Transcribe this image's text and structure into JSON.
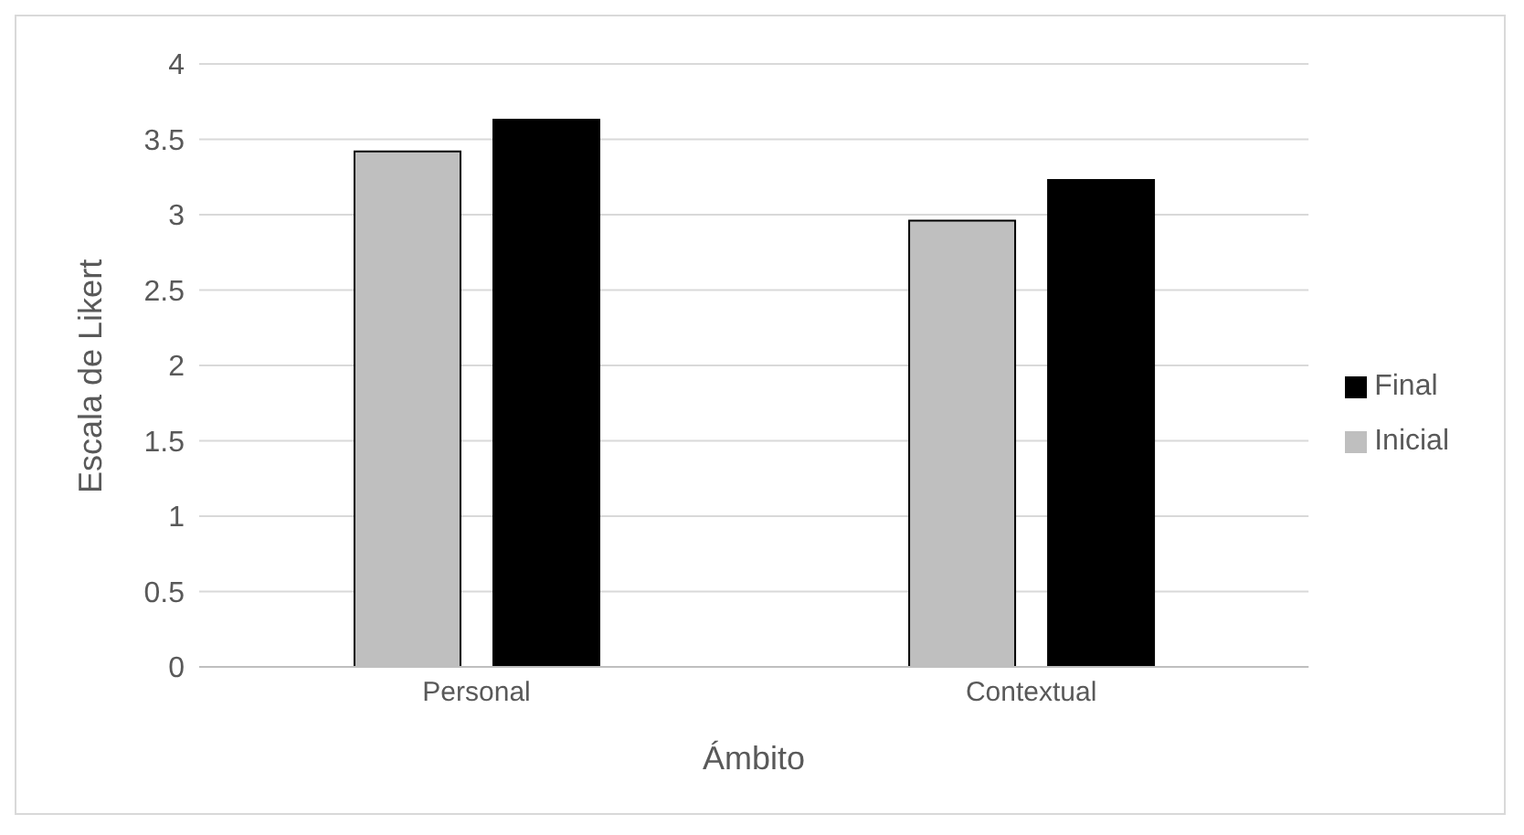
{
  "chart_data": {
    "type": "bar",
    "xlabel": "Ámbito",
    "ylabel": "Escala de Likert",
    "categories": [
      "Personal",
      "Contextual"
    ],
    "series": [
      {
        "name": "Inicial",
        "color": "#bfbfbf",
        "values": [
          3.42,
          2.96
        ]
      },
      {
        "name": "Final",
        "color": "#000000",
        "values": [
          3.63,
          3.23
        ]
      }
    ],
    "ylim": [
      0,
      4
    ],
    "yticks": [
      0,
      0.5,
      1,
      1.5,
      2,
      2.5,
      3,
      3.5,
      4
    ],
    "grid": "y",
    "legend": "right"
  }
}
